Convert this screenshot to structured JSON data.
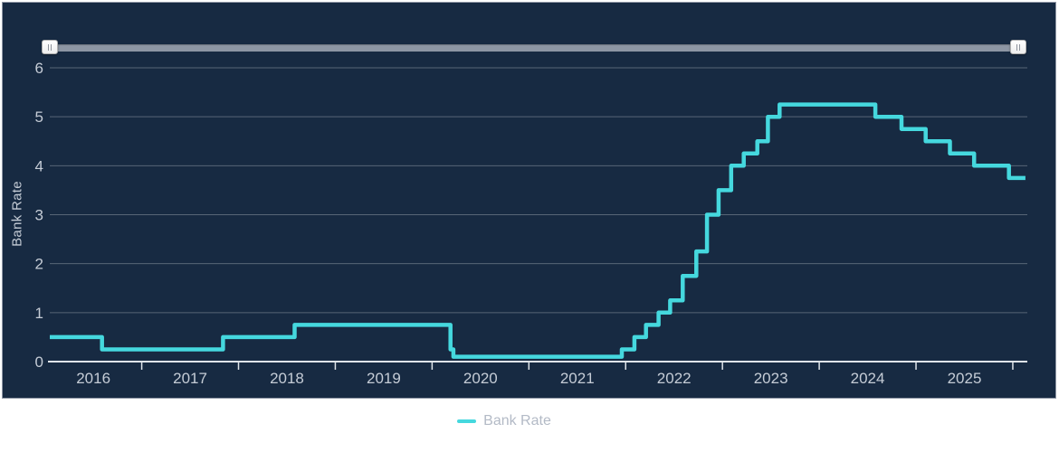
{
  "panel": {
    "background": "#172a42"
  },
  "slider": {
    "left_handle_icon": "grip-vertical",
    "right_handle_icon": "grip-vertical",
    "track_color": "#8d96a4"
  },
  "y_axis": {
    "title": "Bank Rate",
    "ticks": [
      0,
      1,
      2,
      3,
      4,
      5,
      6
    ]
  },
  "x_axis": {
    "year_labels": [
      "2016",
      "2017",
      "2018",
      "2019",
      "2020",
      "2021",
      "2022",
      "2023",
      "2024",
      "2025"
    ],
    "boundary_tick_years": [
      2017,
      2018,
      2019,
      2020,
      2021,
      2022,
      2023,
      2024,
      2025,
      2026
    ]
  },
  "legend": {
    "label": "Bank Rate",
    "marker_color": "#45d8de"
  },
  "chart_data": {
    "type": "line",
    "step": true,
    "title": "",
    "xlabel": "",
    "ylabel": "Bank Rate",
    "xlim": [
      2016.05,
      2026.15
    ],
    "ylim": [
      0,
      6
    ],
    "grid": true,
    "legend_position": "bottom",
    "series": [
      {
        "name": "Bank Rate",
        "color": "#45d8de",
        "points": [
          [
            2016.05,
            0.5
          ],
          [
            2016.59,
            0.25
          ],
          [
            2017.84,
            0.5
          ],
          [
            2018.58,
            0.75
          ],
          [
            2020.19,
            0.25
          ],
          [
            2020.22,
            0.1
          ],
          [
            2021.96,
            0.25
          ],
          [
            2022.09,
            0.5
          ],
          [
            2022.21,
            0.75
          ],
          [
            2022.34,
            1.0
          ],
          [
            2022.46,
            1.25
          ],
          [
            2022.59,
            1.75
          ],
          [
            2022.73,
            2.25
          ],
          [
            2022.84,
            3.0
          ],
          [
            2022.96,
            3.5
          ],
          [
            2023.09,
            4.0
          ],
          [
            2023.22,
            4.25
          ],
          [
            2023.36,
            4.5
          ],
          [
            2023.47,
            5.0
          ],
          [
            2023.59,
            5.25
          ],
          [
            2024.58,
            5.0
          ],
          [
            2024.85,
            4.75
          ],
          [
            2025.1,
            4.5
          ],
          [
            2025.35,
            4.25
          ],
          [
            2025.6,
            4.0
          ],
          [
            2025.96,
            3.75
          ],
          [
            2026.13,
            3.75
          ]
        ]
      }
    ]
  }
}
